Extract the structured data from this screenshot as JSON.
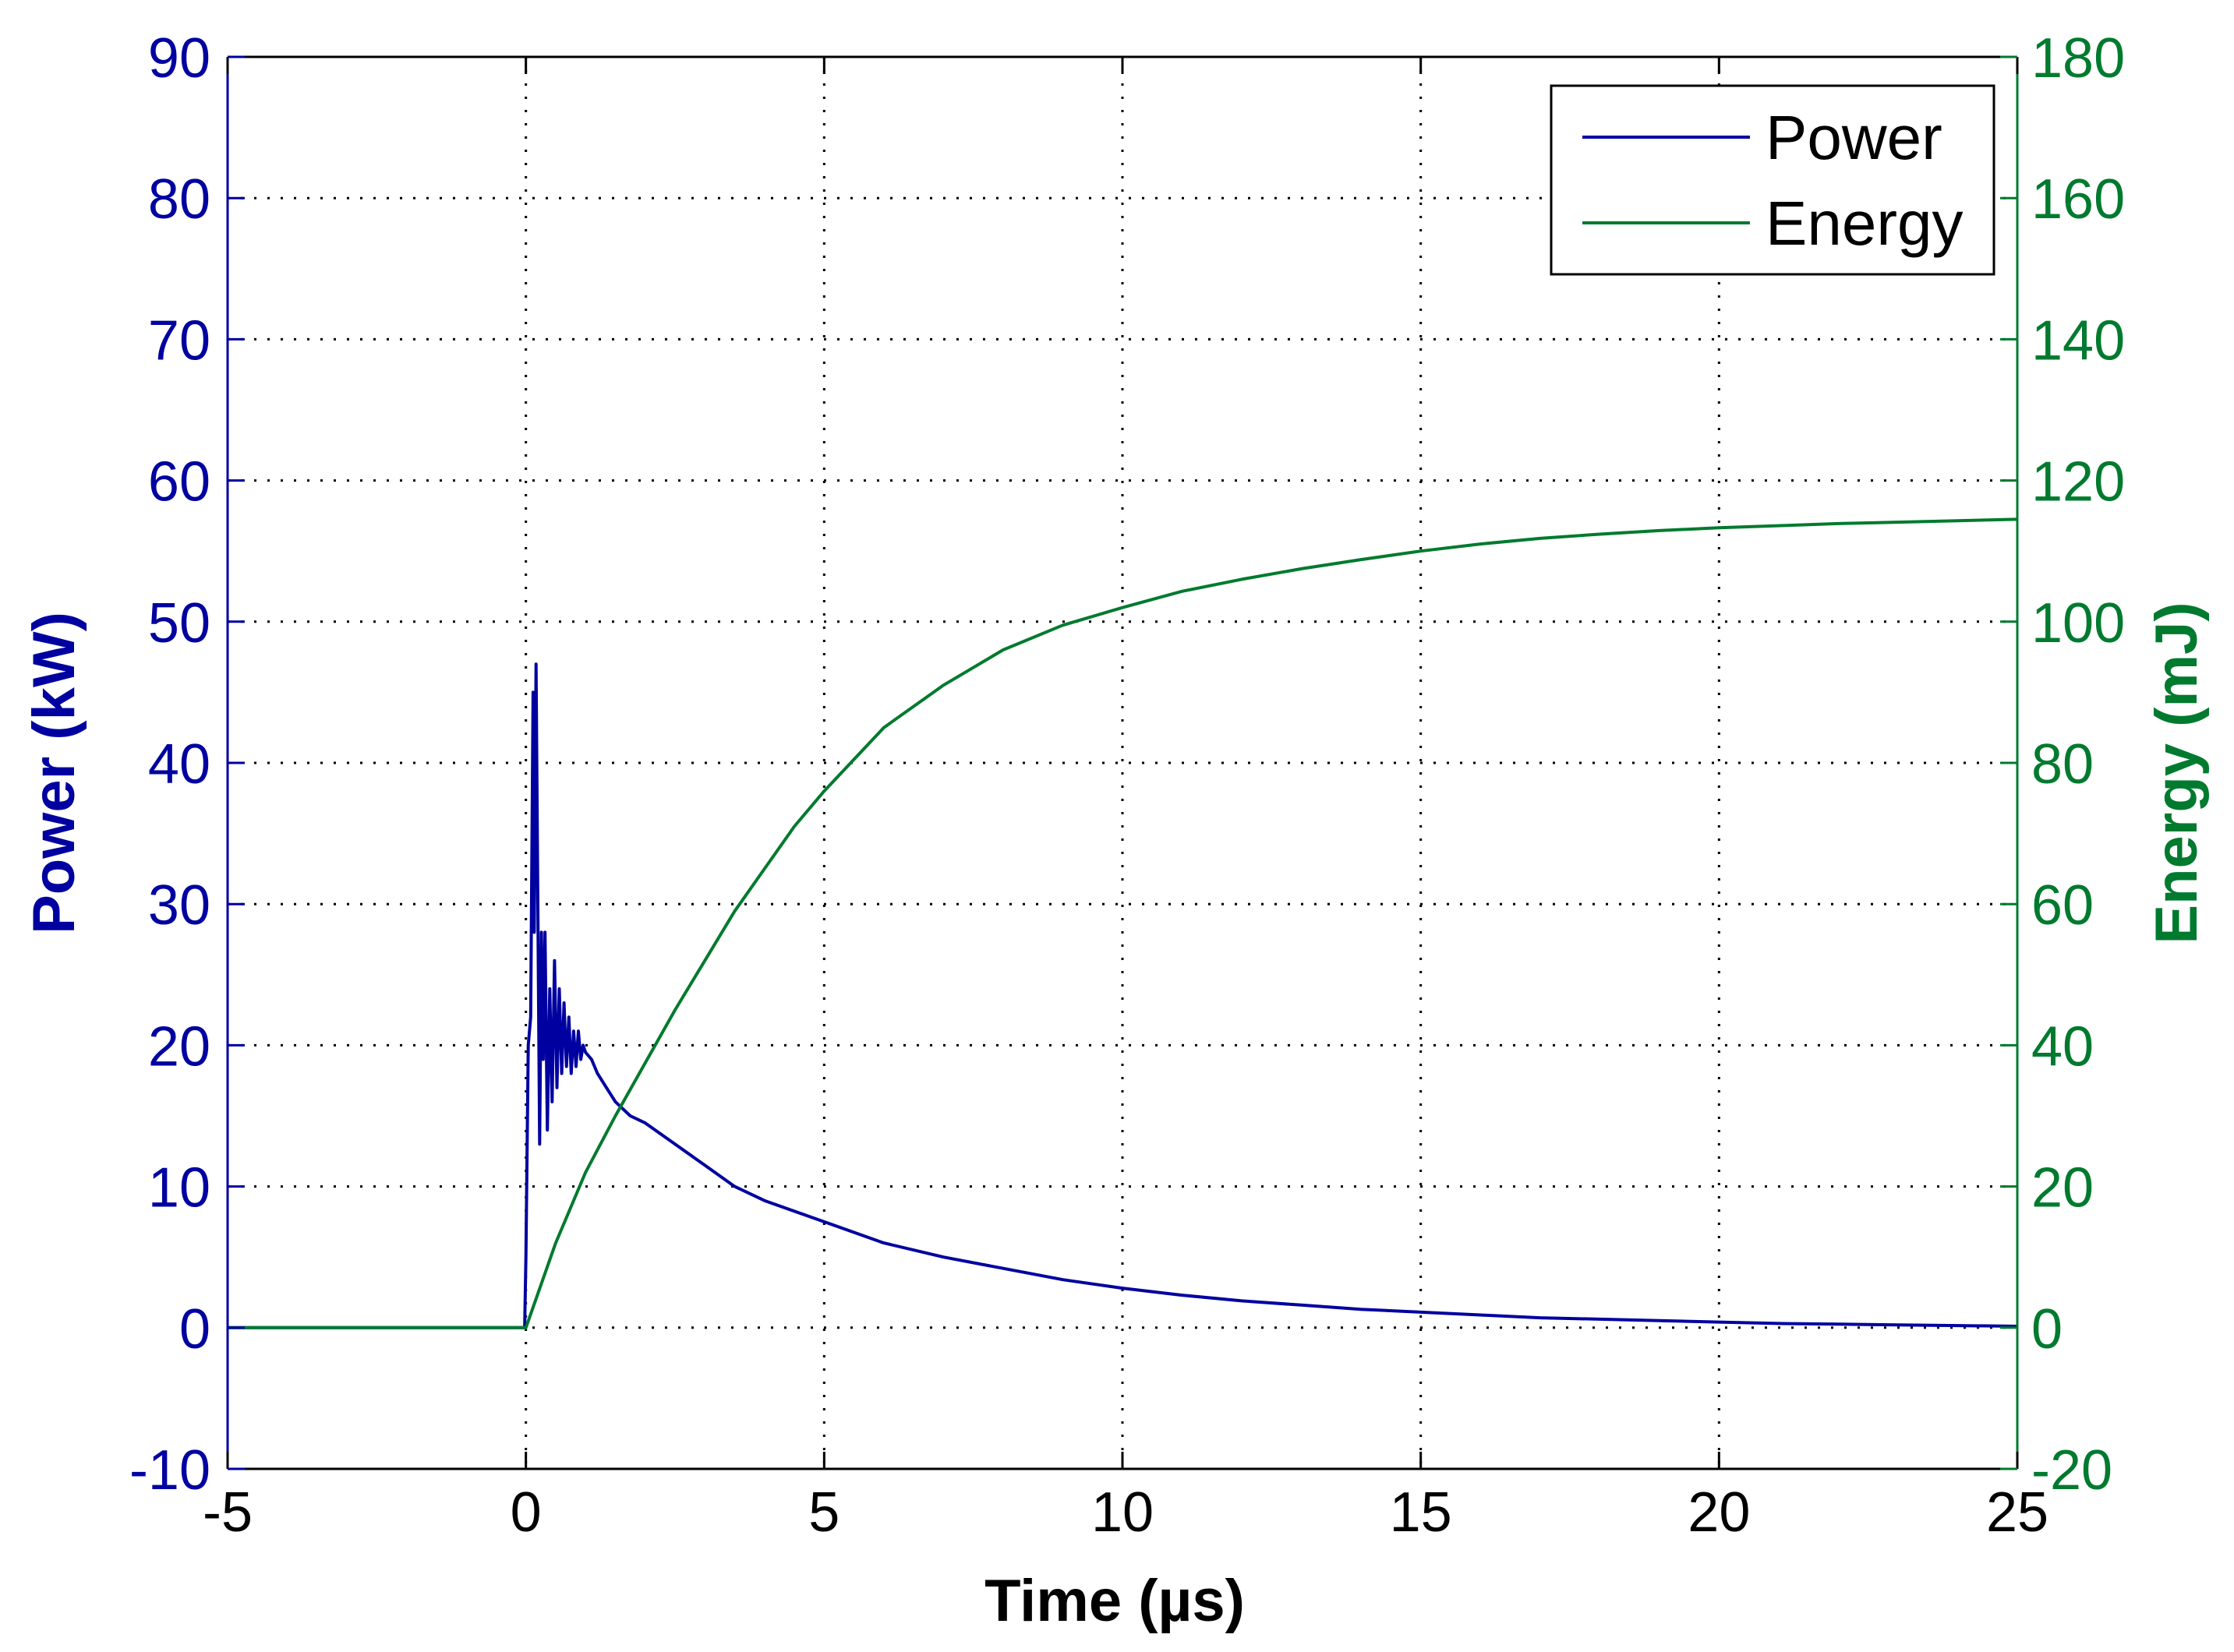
{
  "chart_data": {
    "type": "line",
    "title": "",
    "xlabel": "Time (µs)",
    "ylabel_left": "Power (kW)",
    "ylabel_right": "Energy (mJ)",
    "xlim": [
      -5,
      25
    ],
    "ylim_left": [
      -10,
      90
    ],
    "ylim_right": [
      -20,
      180
    ],
    "grid": true,
    "legend_position": "top-right",
    "x_ticks": [
      "-5",
      "0",
      "5",
      "10",
      "15",
      "20",
      "25"
    ],
    "y_left_ticks": [
      "-10",
      "0",
      "10",
      "20",
      "30",
      "40",
      "50",
      "60",
      "70",
      "80",
      "90"
    ],
    "y_right_ticks": [
      "-20",
      "0",
      "20",
      "40",
      "60",
      "80",
      "100",
      "120",
      "140",
      "160",
      "180"
    ],
    "colors": {
      "power": "#0000a0",
      "energy": "#007a2e",
      "left_axis": "#0000a0",
      "right_axis": "#007a2e"
    },
    "series": [
      {
        "name": "Power",
        "axis": "left",
        "x": [
          -5,
          -0.02,
          0.0,
          0.04,
          0.08,
          0.12,
          0.14,
          0.17,
          0.2,
          0.23,
          0.26,
          0.29,
          0.32,
          0.36,
          0.4,
          0.44,
          0.48,
          0.52,
          0.56,
          0.6,
          0.64,
          0.68,
          0.72,
          0.76,
          0.8,
          0.84,
          0.88,
          0.92,
          0.96,
          1.0,
          1.1,
          1.2,
          1.35,
          1.5,
          1.75,
          2.0,
          2.5,
          3.0,
          3.5,
          4.0,
          5.0,
          6.0,
          7.0,
          8.0,
          9.0,
          10.0,
          11.0,
          12.0,
          13.0,
          14.0,
          15.0,
          16.0,
          17.0,
          18.0,
          19.0,
          20.0,
          21.0,
          22.0,
          23.0,
          24.0,
          25.0
        ],
        "y": [
          0,
          0,
          5,
          20,
          22,
          45,
          28,
          47,
          30,
          13,
          28,
          19,
          28,
          14,
          24,
          16,
          26,
          17,
          24,
          18,
          23,
          18.5,
          22,
          18,
          21,
          18.5,
          21,
          19,
          20,
          19.5,
          19,
          18,
          17,
          16,
          15,
          14.5,
          13,
          11.5,
          10,
          9,
          7.5,
          6,
          5,
          4.2,
          3.4,
          2.8,
          2.3,
          1.9,
          1.6,
          1.3,
          1.1,
          0.9,
          0.7,
          0.6,
          0.5,
          0.4,
          0.3,
          0.25,
          0.2,
          0.15,
          0.1
        ]
      },
      {
        "name": "Energy",
        "axis": "right",
        "x": [
          -5,
          0,
          0.5,
          1,
          1.5,
          2,
          2.5,
          3,
          3.5,
          4,
          4.5,
          5,
          6,
          7,
          8,
          9,
          10,
          11,
          12,
          13,
          14,
          15,
          16,
          17,
          18,
          19,
          20,
          21,
          22,
          23,
          24,
          25
        ],
        "y": [
          0,
          0,
          12,
          22,
          30,
          37.5,
          45,
          52,
          59,
          65,
          71,
          76,
          85,
          91,
          96,
          99.5,
          102,
          104.3,
          106,
          107.5,
          108.8,
          110,
          111,
          111.8,
          112.4,
          112.9,
          113.3,
          113.6,
          113.9,
          114.1,
          114.3,
          114.5
        ]
      }
    ]
  }
}
